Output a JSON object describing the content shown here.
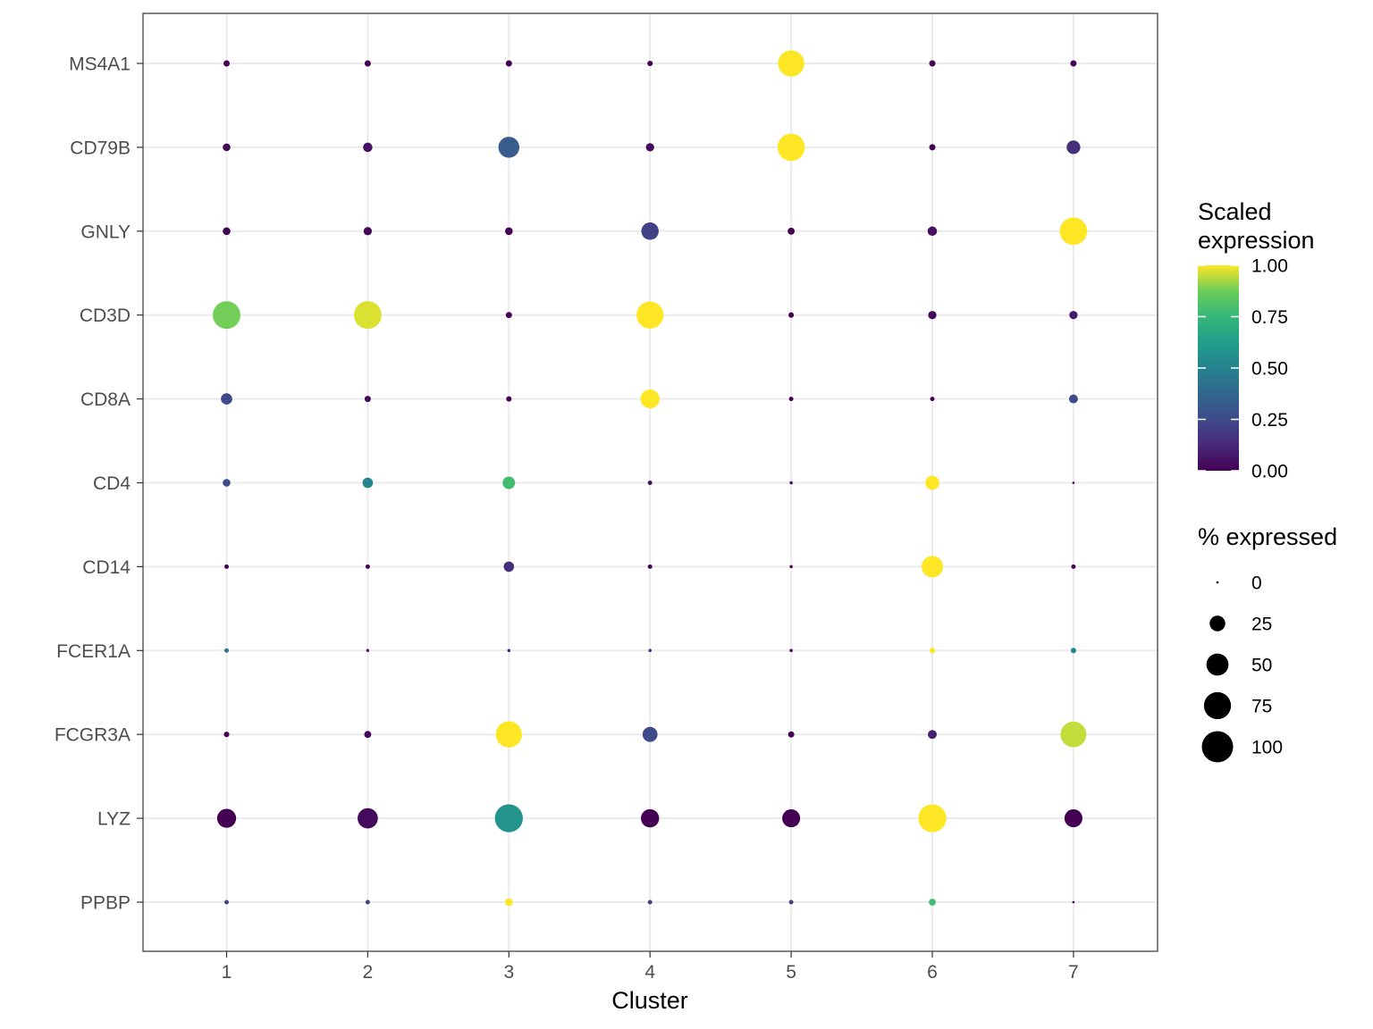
{
  "chart_data": {
    "type": "scatter",
    "subtype": "dot-plot",
    "title": "",
    "xlabel": "Cluster",
    "ylabel": "",
    "x_categories": [
      "1",
      "2",
      "3",
      "4",
      "5",
      "6",
      "7"
    ],
    "y_categories": [
      "MS4A1",
      "CD79B",
      "GNLY",
      "CD3D",
      "CD8A",
      "CD4",
      "CD14",
      "FCER1A",
      "FCGR3A",
      "LYZ",
      "PPBP"
    ],
    "grid": true,
    "color_legend": {
      "title_lines": [
        "Scaled",
        "expression"
      ],
      "ticks": [
        "1.00",
        "0.75",
        "0.50",
        "0.25",
        "0.00"
      ],
      "tick_values": [
        1.0,
        0.75,
        0.5,
        0.25,
        0.0
      ],
      "colormap": "viridis",
      "placement": "right"
    },
    "size_legend": {
      "title": "% expressed",
      "breaks": [
        "0",
        "25",
        "50",
        "75",
        "100"
      ],
      "break_values": [
        0,
        25,
        50,
        75,
        100
      ],
      "placement": "right"
    },
    "points": [
      {
        "gene": "MS4A1",
        "cluster": "1",
        "pct": 4,
        "scaled": 0.0
      },
      {
        "gene": "MS4A1",
        "cluster": "2",
        "pct": 4,
        "scaled": 0.0
      },
      {
        "gene": "MS4A1",
        "cluster": "3",
        "pct": 4,
        "scaled": 0.0
      },
      {
        "gene": "MS4A1",
        "cluster": "4",
        "pct": 3,
        "scaled": 0.0
      },
      {
        "gene": "MS4A1",
        "cluster": "5",
        "pct": 70,
        "scaled": 1.0
      },
      {
        "gene": "MS4A1",
        "cluster": "6",
        "pct": 4,
        "scaled": 0.0
      },
      {
        "gene": "MS4A1",
        "cluster": "7",
        "pct": 4,
        "scaled": 0.0
      },
      {
        "gene": "CD79B",
        "cluster": "1",
        "pct": 6,
        "scaled": 0.02
      },
      {
        "gene": "CD79B",
        "cluster": "2",
        "pct": 9,
        "scaled": 0.05
      },
      {
        "gene": "CD79B",
        "cluster": "3",
        "pct": 45,
        "scaled": 0.33
      },
      {
        "gene": "CD79B",
        "cluster": "4",
        "pct": 7,
        "scaled": 0.03
      },
      {
        "gene": "CD79B",
        "cluster": "5",
        "pct": 76,
        "scaled": 1.0
      },
      {
        "gene": "CD79B",
        "cluster": "6",
        "pct": 4,
        "scaled": 0.0
      },
      {
        "gene": "CD79B",
        "cluster": "7",
        "pct": 19,
        "scaled": 0.15
      },
      {
        "gene": "GNLY",
        "cluster": "1",
        "pct": 6,
        "scaled": 0.0
      },
      {
        "gene": "GNLY",
        "cluster": "2",
        "pct": 7,
        "scaled": 0.02
      },
      {
        "gene": "GNLY",
        "cluster": "3",
        "pct": 6,
        "scaled": 0.0
      },
      {
        "gene": "GNLY",
        "cluster": "4",
        "pct": 31,
        "scaled": 0.22
      },
      {
        "gene": "GNLY",
        "cluster": "5",
        "pct": 5,
        "scaled": 0.0
      },
      {
        "gene": "GNLY",
        "cluster": "6",
        "pct": 9,
        "scaled": 0.05
      },
      {
        "gene": "GNLY",
        "cluster": "7",
        "pct": 77,
        "scaled": 1.0
      },
      {
        "gene": "CD3D",
        "cluster": "1",
        "pct": 78,
        "scaled": 0.88
      },
      {
        "gene": "CD3D",
        "cluster": "2",
        "pct": 78,
        "scaled": 0.97
      },
      {
        "gene": "CD3D",
        "cluster": "3",
        "pct": 4,
        "scaled": 0.0
      },
      {
        "gene": "CD3D",
        "cluster": "4",
        "pct": 75,
        "scaled": 1.0
      },
      {
        "gene": "CD3D",
        "cluster": "5",
        "pct": 3,
        "scaled": 0.0
      },
      {
        "gene": "CD3D",
        "cluster": "6",
        "pct": 7,
        "scaled": 0.03
      },
      {
        "gene": "CD3D",
        "cluster": "7",
        "pct": 7,
        "scaled": 0.08
      },
      {
        "gene": "CD8A",
        "cluster": "1",
        "pct": 13,
        "scaled": 0.25
      },
      {
        "gene": "CD8A",
        "cluster": "2",
        "pct": 4,
        "scaled": 0.03
      },
      {
        "gene": "CD8A",
        "cluster": "3",
        "pct": 3,
        "scaled": 0.0
      },
      {
        "gene": "CD8A",
        "cluster": "4",
        "pct": 37,
        "scaled": 1.0
      },
      {
        "gene": "CD8A",
        "cluster": "5",
        "pct": 2,
        "scaled": 0.0
      },
      {
        "gene": "CD8A",
        "cluster": "6",
        "pct": 2,
        "scaled": 0.0
      },
      {
        "gene": "CD8A",
        "cluster": "7",
        "pct": 8,
        "scaled": 0.25
      },
      {
        "gene": "CD4",
        "cluster": "1",
        "pct": 6,
        "scaled": 0.25
      },
      {
        "gene": "CD4",
        "cluster": "2",
        "pct": 11,
        "scaled": 0.52
      },
      {
        "gene": "CD4",
        "cluster": "3",
        "pct": 16,
        "scaled": 0.78
      },
      {
        "gene": "CD4",
        "cluster": "4",
        "pct": 2,
        "scaled": 0.05
      },
      {
        "gene": "CD4",
        "cluster": "5",
        "pct": 1,
        "scaled": 0.05
      },
      {
        "gene": "CD4",
        "cluster": "6",
        "pct": 20,
        "scaled": 1.0
      },
      {
        "gene": "CD4",
        "cluster": "7",
        "pct": 0,
        "scaled": 0.0
      },
      {
        "gene": "CD14",
        "cluster": "1",
        "pct": 2,
        "scaled": 0.0
      },
      {
        "gene": "CD14",
        "cluster": "2",
        "pct": 2,
        "scaled": 0.0
      },
      {
        "gene": "CD14",
        "cluster": "3",
        "pct": 11,
        "scaled": 0.15
      },
      {
        "gene": "CD14",
        "cluster": "4",
        "pct": 2,
        "scaled": 0.0
      },
      {
        "gene": "CD14",
        "cluster": "5",
        "pct": 1,
        "scaled": 0.0
      },
      {
        "gene": "CD14",
        "cluster": "6",
        "pct": 47,
        "scaled": 1.0
      },
      {
        "gene": "CD14",
        "cluster": "7",
        "pct": 2,
        "scaled": 0.0
      },
      {
        "gene": "FCER1A",
        "cluster": "1",
        "pct": 2,
        "scaled": 0.42
      },
      {
        "gene": "FCER1A",
        "cluster": "2",
        "pct": 1,
        "scaled": 0.1
      },
      {
        "gene": "FCER1A",
        "cluster": "3",
        "pct": 1,
        "scaled": 0.1
      },
      {
        "gene": "FCER1A",
        "cluster": "4",
        "pct": 1,
        "scaled": 0.1
      },
      {
        "gene": "FCER1A",
        "cluster": "5",
        "pct": 1,
        "scaled": 0.0
      },
      {
        "gene": "FCER1A",
        "cluster": "6",
        "pct": 3,
        "scaled": 1.0
      },
      {
        "gene": "FCER1A",
        "cluster": "7",
        "pct": 3,
        "scaled": 0.52
      },
      {
        "gene": "FCGR3A",
        "cluster": "1",
        "pct": 3,
        "scaled": 0.0
      },
      {
        "gene": "FCGR3A",
        "cluster": "2",
        "pct": 5,
        "scaled": 0.02
      },
      {
        "gene": "FCGR3A",
        "cluster": "3",
        "pct": 70,
        "scaled": 1.0
      },
      {
        "gene": "FCGR3A",
        "cluster": "4",
        "pct": 23,
        "scaled": 0.25
      },
      {
        "gene": "FCGR3A",
        "cluster": "5",
        "pct": 4,
        "scaled": 0.0
      },
      {
        "gene": "FCGR3A",
        "cluster": "6",
        "pct": 8,
        "scaled": 0.1
      },
      {
        "gene": "FCGR3A",
        "cluster": "7",
        "pct": 68,
        "scaled": 0.95
      },
      {
        "gene": "LYZ",
        "cluster": "1",
        "pct": 37,
        "scaled": 0.0
      },
      {
        "gene": "LYZ",
        "cluster": "2",
        "pct": 42,
        "scaled": 0.03
      },
      {
        "gene": "LYZ",
        "cluster": "3",
        "pct": 80,
        "scaled": 0.58
      },
      {
        "gene": "LYZ",
        "cluster": "4",
        "pct": 34,
        "scaled": 0.0
      },
      {
        "gene": "LYZ",
        "cluster": "5",
        "pct": 33,
        "scaled": 0.0
      },
      {
        "gene": "LYZ",
        "cluster": "6",
        "pct": 80,
        "scaled": 1.0
      },
      {
        "gene": "LYZ",
        "cluster": "7",
        "pct": 33,
        "scaled": 0.0
      },
      {
        "gene": "PPBP",
        "cluster": "1",
        "pct": 2,
        "scaled": 0.22
      },
      {
        "gene": "PPBP",
        "cluster": "2",
        "pct": 2,
        "scaled": 0.22
      },
      {
        "gene": "PPBP",
        "cluster": "3",
        "pct": 6,
        "scaled": 1.0
      },
      {
        "gene": "PPBP",
        "cluster": "4",
        "pct": 2,
        "scaled": 0.22
      },
      {
        "gene": "PPBP",
        "cluster": "5",
        "pct": 2,
        "scaled": 0.22
      },
      {
        "gene": "PPBP",
        "cluster": "6",
        "pct": 5,
        "scaled": 0.78
      },
      {
        "gene": "PPBP",
        "cluster": "7",
        "pct": 0,
        "scaled": 0.0
      }
    ]
  }
}
